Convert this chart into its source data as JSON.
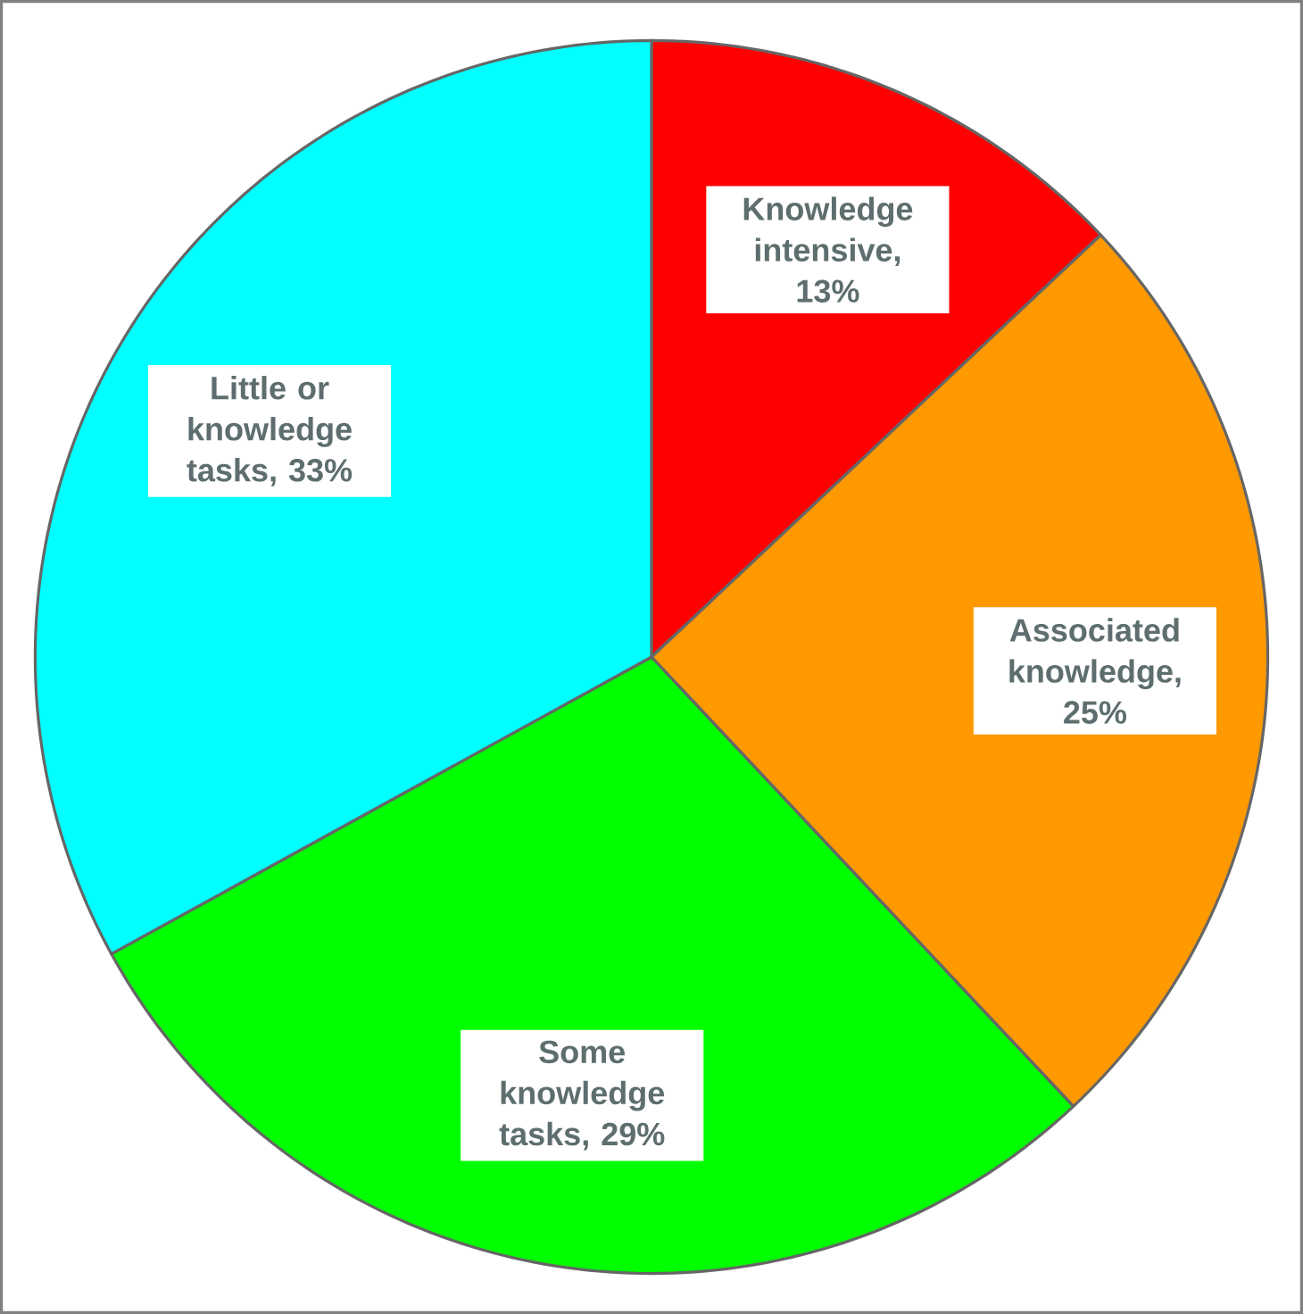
{
  "chart_data": {
    "type": "pie",
    "categories": [
      "Knowledge intensive",
      "Associated knowledge",
      "Some knowledge tasks",
      "Little or knowledge tasks"
    ],
    "values": [
      13,
      25,
      29,
      33
    ],
    "value_labels": [
      ", 13%",
      ", 25%",
      ", 29%",
      ", 33%"
    ],
    "colors": [
      "#ff0000",
      "#ff9900",
      "#00ff00",
      "#00ffff"
    ]
  }
}
